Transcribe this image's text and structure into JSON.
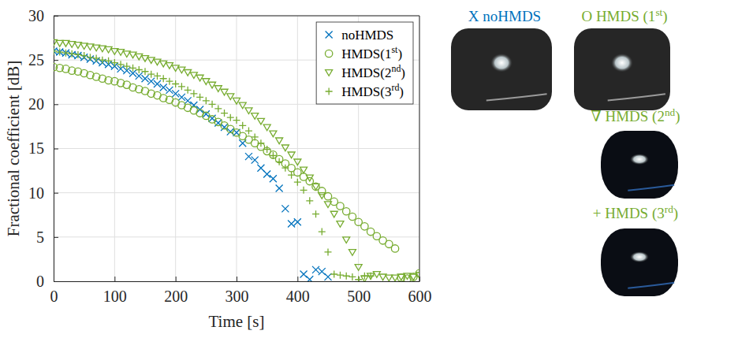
{
  "chart_data": {
    "type": "scatter",
    "x_label": "Time [s]",
    "y_label": "Fractional coefficient [dB]",
    "xlim": [
      0,
      600
    ],
    "ylim": [
      0,
      30
    ],
    "xticks": [
      0,
      100,
      200,
      300,
      400,
      500,
      600
    ],
    "yticks": [
      0,
      5,
      10,
      15,
      20,
      25,
      30
    ],
    "grid": true,
    "legend": "upper right",
    "annotations": [
      "X noHMDS",
      "O HMDS (1st)",
      "∇ HMDS (2nd)",
      "+ HMDS (3rd)"
    ],
    "series": [
      {
        "name": "noHMDS",
        "color": "#0072bd",
        "marker": "x",
        "x": [
          0,
          10,
          20,
          30,
          40,
          50,
          60,
          70,
          80,
          90,
          100,
          110,
          120,
          130,
          140,
          150,
          160,
          170,
          180,
          190,
          200,
          210,
          220,
          230,
          240,
          250,
          260,
          270,
          280,
          290,
          300,
          310,
          320,
          330,
          340,
          350,
          360,
          370,
          380,
          390,
          400,
          410,
          420,
          430,
          440,
          450
        ],
        "values": [
          26.0,
          25.9,
          25.8,
          25.6,
          25.5,
          25.3,
          25.1,
          24.9,
          24.7,
          24.5,
          24.3,
          24.0,
          23.8,
          23.5,
          23.2,
          22.9,
          22.6,
          22.3,
          21.9,
          21.6,
          21.2,
          20.8,
          20.4,
          19.9,
          19.4,
          18.9,
          18.4,
          17.9,
          17.4,
          16.9,
          16.8,
          15.6,
          14.1,
          13.7,
          12.8,
          12.1,
          11.6,
          10.5,
          8.2,
          6.5,
          6.7,
          0.8,
          0.2,
          1.3,
          1.1,
          0.5
        ]
      },
      {
        "name": "HMDS(1st)",
        "color": "#77ac30",
        "marker": "circle",
        "x": [
          0,
          10,
          20,
          30,
          40,
          50,
          60,
          70,
          80,
          90,
          100,
          110,
          120,
          130,
          140,
          150,
          160,
          170,
          180,
          190,
          200,
          210,
          220,
          230,
          240,
          250,
          260,
          270,
          280,
          290,
          300,
          310,
          320,
          330,
          340,
          350,
          360,
          370,
          380,
          390,
          400,
          410,
          420,
          430,
          440,
          450,
          460,
          470,
          480,
          490,
          500,
          510,
          520,
          530,
          540,
          550,
          560,
          570,
          580,
          590,
          600
        ],
        "values": [
          24.2,
          24.1,
          24.0,
          23.8,
          23.7,
          23.5,
          23.3,
          23.1,
          22.9,
          22.7,
          22.6,
          22.4,
          22.2,
          21.9,
          21.7,
          21.5,
          21.2,
          21.0,
          20.7,
          20.5,
          20.2,
          19.9,
          19.6,
          19.3,
          19.0,
          18.7,
          18.3,
          18.0,
          17.6,
          17.2,
          16.8,
          16.4,
          16.0,
          15.6,
          15.2,
          14.7,
          14.3,
          13.8,
          13.3,
          12.8,
          12.3,
          11.8,
          11.3,
          10.7,
          10.2,
          9.6,
          9.0,
          8.5,
          7.9,
          7.3,
          6.7,
          6.2,
          5.6,
          5.1,
          4.6,
          4.2,
          3.7,
          0.4,
          0.3,
          0.5,
          0.9
        ]
      },
      {
        "name": "HMDS(2nd)",
        "color": "#77ac30",
        "marker": "triangle-down",
        "x": [
          0,
          10,
          20,
          30,
          40,
          50,
          60,
          70,
          80,
          90,
          100,
          110,
          120,
          130,
          140,
          150,
          160,
          170,
          180,
          190,
          200,
          210,
          220,
          230,
          240,
          250,
          260,
          270,
          280,
          290,
          300,
          310,
          320,
          330,
          340,
          350,
          360,
          370,
          380,
          390,
          400,
          410,
          420,
          430,
          440,
          450,
          460,
          470,
          480,
          490,
          500,
          510,
          520,
          530,
          540,
          550,
          560,
          570,
          580,
          590,
          600
        ],
        "values": [
          27.0,
          26.9,
          26.9,
          26.8,
          26.7,
          26.6,
          26.5,
          26.4,
          26.3,
          26.2,
          26.0,
          25.9,
          25.7,
          25.6,
          25.4,
          25.2,
          25.0,
          24.8,
          24.6,
          24.4,
          24.1,
          23.9,
          23.6,
          23.3,
          23.0,
          22.6,
          22.2,
          21.8,
          21.4,
          20.9,
          20.4,
          19.9,
          19.3,
          18.7,
          18.1,
          17.4,
          16.7,
          15.9,
          15.1,
          14.3,
          13.5,
          12.6,
          11.7,
          10.7,
          9.7,
          8.7,
          7.6,
          6.5,
          4.7,
          3.3,
          1.6,
          0.3,
          0.6,
          0.8,
          0.5,
          0.4,
          0.4,
          0.5,
          0.6,
          0.5,
          0.7
        ]
      },
      {
        "name": "HMDS(3rd)",
        "color": "#77ac30",
        "marker": "plus",
        "x": [
          0,
          10,
          20,
          30,
          40,
          50,
          60,
          70,
          80,
          90,
          100,
          110,
          120,
          130,
          140,
          150,
          160,
          170,
          180,
          190,
          200,
          210,
          220,
          230,
          240,
          250,
          260,
          270,
          280,
          290,
          300,
          310,
          320,
          330,
          340,
          350,
          360,
          370,
          380,
          390,
          400,
          410,
          420,
          430,
          440,
          450,
          460,
          470,
          480,
          490,
          500,
          510,
          520
        ],
        "values": [
          26.0,
          25.9,
          25.8,
          25.7,
          25.6,
          25.5,
          25.3,
          25.2,
          25.0,
          24.9,
          24.7,
          24.5,
          24.3,
          24.1,
          23.9,
          23.7,
          23.4,
          23.2,
          22.9,
          22.6,
          22.3,
          22.0,
          21.6,
          21.2,
          20.8,
          20.4,
          20.0,
          19.5,
          19.0,
          18.5,
          18.2,
          17.6,
          17.0,
          16.3,
          15.6,
          14.9,
          14.2,
          13.5,
          12.8,
          12.0,
          11.2,
          10.3,
          9.1,
          7.6,
          5.6,
          3.3,
          0.8,
          0.7,
          0.6,
          0.5,
          0.2,
          0.6,
          0.6
        ]
      }
    ]
  }
}
